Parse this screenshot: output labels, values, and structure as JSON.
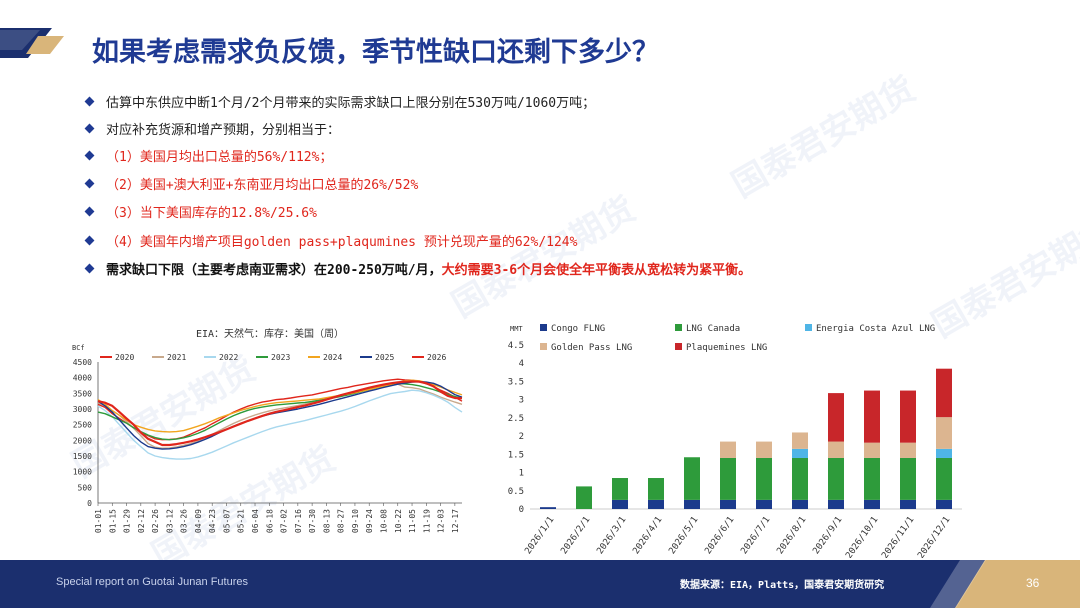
{
  "title": "如果考虑需求负反馈，季节性缺口还剩下多少？",
  "bullets": [
    {
      "text": "估算中东供应中断1个月/2个月带来的实际需求缺口上限分别在530万吨/1060万吨；",
      "style": "black"
    },
    {
      "text": "对应补充货源和增产预期，分别相当于：",
      "style": "black"
    },
    {
      "text": "（1）美国月均出口总量的56%/112%；",
      "style": "red"
    },
    {
      "text": "（2）美国+澳大利亚+东南亚月均出口总量的26%/52%",
      "style": "red"
    },
    {
      "text": "（3）当下美国库存的12.8%/25.6%",
      "style": "red"
    },
    {
      "text": "（4）美国年内增产项目golden pass+plaqumines 预计兑现产量的62%/124%",
      "style": "red"
    }
  ],
  "bullet_strong": {
    "prefix": "需求缺口下限（主要考虑南亚需求）在200-250万吨/月，",
    "emphasis": "大约需要3-6个月会使全年平衡表从宽松转为紧平衡。"
  },
  "watermark_text": "国泰君安期货",
  "footer": {
    "left": "Special report on Guotai Junan Futures",
    "source": "数据来源：EIA，Platts，国泰君安期货研究",
    "page": "36"
  },
  "colors": {
    "title": "#1f3a93",
    "red": "#e0261c",
    "navy": "#1b2f6e",
    "gold": "#d9b57a"
  },
  "chart_data": [
    {
      "type": "line",
      "title": "EIA：天然气：库存：美国（周）",
      "ylabel": "BCf",
      "ylim": [
        0,
        4500
      ],
      "yticks": [
        0,
        500,
        1000,
        1500,
        2000,
        2500,
        3000,
        3500,
        4000,
        4500
      ],
      "x_ticks": [
        "01-01",
        "01-08",
        "01-15",
        "01-22",
        "01-29",
        "02-05",
        "02-12",
        "02-19",
        "02-26",
        "03-05",
        "03-12",
        "03-19",
        "03-26",
        "04-02",
        "04-09",
        "04-16",
        "04-23",
        "04-30",
        "05-07",
        "05-14",
        "05-21",
        "05-28",
        "06-04",
        "06-11",
        "06-18",
        "06-25",
        "07-02",
        "07-09",
        "07-16",
        "07-23",
        "07-30",
        "08-06",
        "08-13",
        "08-20",
        "08-27",
        "09-03",
        "09-10",
        "09-17",
        "09-24",
        "10-01",
        "10-08",
        "10-15",
        "10-22",
        "10-29",
        "11-05",
        "11-12",
        "11-19",
        "11-26",
        "12-03",
        "12-10",
        "12-17",
        "12-24"
      ],
      "x_tick_labels_shown": [
        "01-01",
        "01-15",
        "01-29",
        "02-12",
        "02-26",
        "03-12",
        "03-26",
        "04-09",
        "04-23",
        "05-07",
        "05-21",
        "06-04",
        "06-18",
        "07-02",
        "07-16",
        "07-30",
        "08-13",
        "08-27",
        "09-10",
        "09-24",
        "10-08",
        "10-22",
        "11-05",
        "11-19",
        "12-03",
        "12-17"
      ],
      "series": [
        {
          "name": "2020",
          "color": "#e0261c",
          "values": [
            3150,
            3050,
            2850,
            2700,
            2550,
            2400,
            2250,
            2150,
            2050,
            2020,
            2030,
            2050,
            2100,
            2200,
            2300,
            2400,
            2530,
            2650,
            2780,
            2900,
            3000,
            3090,
            3160,
            3220,
            3260,
            3300,
            3320,
            3350,
            3390,
            3420,
            3450,
            3500,
            3550,
            3600,
            3650,
            3690,
            3740,
            3780,
            3820,
            3860,
            3900,
            3930,
            3950,
            3930,
            3920,
            3880,
            3800,
            3720,
            3600,
            3500,
            3380,
            3250
          ]
        },
        {
          "name": "2021",
          "color": "#c8a98c",
          "values": [
            3200,
            3100,
            2950,
            2800,
            2600,
            2380,
            2150,
            1900,
            1780,
            1750,
            1760,
            1790,
            1840,
            1900,
            1980,
            2080,
            2190,
            2310,
            2430,
            2540,
            2640,
            2730,
            2810,
            2880,
            2940,
            2990,
            3030,
            3070,
            3110,
            3160,
            3200,
            3250,
            3300,
            3350,
            3400,
            3460,
            3520,
            3580,
            3630,
            3680,
            3720,
            3760,
            3790,
            3700,
            3680,
            3640,
            3560,
            3480,
            3380,
            3300,
            3220,
            3150
          ]
        },
        {
          "name": "2022",
          "color": "#a8d8ee",
          "values": [
            3100,
            2950,
            2750,
            2500,
            2250,
            2000,
            1800,
            1600,
            1500,
            1450,
            1420,
            1400,
            1400,
            1420,
            1470,
            1540,
            1620,
            1720,
            1820,
            1920,
            2010,
            2100,
            2190,
            2280,
            2360,
            2430,
            2480,
            2530,
            2580,
            2630,
            2690,
            2750,
            2810,
            2870,
            2930,
            3000,
            3080,
            3170,
            3260,
            3340,
            3420,
            3490,
            3530,
            3560,
            3600,
            3580,
            3520,
            3440,
            3340,
            3220,
            3050,
            2900
          ]
        },
        {
          "name": "2023",
          "color": "#2e9b3b",
          "values": [
            2900,
            2850,
            2750,
            2650,
            2550,
            2400,
            2280,
            2170,
            2090,
            2040,
            2020,
            2040,
            2080,
            2140,
            2220,
            2320,
            2440,
            2560,
            2680,
            2790,
            2880,
            2960,
            3020,
            3060,
            3100,
            3130,
            3150,
            3170,
            3190,
            3210,
            3240,
            3280,
            3320,
            3360,
            3400,
            3450,
            3500,
            3560,
            3620,
            3680,
            3730,
            3780,
            3810,
            3800,
            3780,
            3740,
            3680,
            3620,
            3540,
            3470,
            3400,
            3350
          ]
        },
        {
          "name": "2024",
          "color": "#f2a51f",
          "values": [
            3300,
            3150,
            2950,
            2800,
            2650,
            2500,
            2420,
            2350,
            2300,
            2280,
            2270,
            2280,
            2310,
            2380,
            2450,
            2530,
            2620,
            2720,
            2800,
            2880,
            2960,
            3020,
            3080,
            3130,
            3170,
            3200,
            3220,
            3240,
            3260,
            3280,
            3300,
            3320,
            3360,
            3400,
            3440,
            3480,
            3520,
            3570,
            3620,
            3680,
            3730,
            3780,
            3850,
            3900,
            3920,
            3900,
            3850,
            3780,
            3700,
            3610,
            3530,
            3450
          ]
        },
        {
          "name": "2025",
          "color": "#1b3a8c",
          "values": [
            3250,
            3100,
            2900,
            2650,
            2400,
            2150,
            1950,
            1800,
            1750,
            1720,
            1730,
            1760,
            1800,
            1860,
            1940,
            2030,
            2130,
            2240,
            2350,
            2450,
            2540,
            2620,
            2700,
            2770,
            2830,
            2880,
            2920,
            2960,
            3000,
            3050,
            3100,
            3150,
            3210,
            3270,
            3330,
            3390,
            3450,
            3510,
            3570,
            3630,
            3690,
            3740,
            3790,
            3830,
            3860,
            3870,
            3860,
            3820,
            3730,
            3600,
            3460,
            3380
          ]
        },
        {
          "name": "2026",
          "color": "#e0261c",
          "values": [
            3250,
            3200,
            3100,
            2900,
            2700,
            2500,
            2250,
            2050,
            1950,
            1850,
            1850,
            1880,
            1920,
            1970,
            2030,
            2100,
            2180,
            2260,
            2350,
            2440,
            2530,
            2620,
            2700,
            2780,
            2850,
            2910,
            2960,
            3010,
            3060,
            3110,
            3170,
            3230,
            3300,
            3370,
            3440,
            3500,
            3560,
            3620,
            3680,
            3730,
            3780,
            3820,
            3850,
            3870,
            3880,
            3870,
            3820,
            3720,
            3560,
            3420,
            3350,
            3340
          ]
        }
      ]
    },
    {
      "type": "bar",
      "stacked": true,
      "ylabel": "MMT",
      "ylim": [
        0,
        4.5
      ],
      "yticks": [
        "0",
        "0.5",
        "1",
        "1.5",
        "2",
        "2.5",
        "3",
        "3.5",
        "4",
        "4.5"
      ],
      "categories": [
        "2026/1/1",
        "2026/2/1",
        "2026/3/1",
        "2026/4/1",
        "2026/5/1",
        "2026/6/1",
        "2026/7/1",
        "2026/8/1",
        "2026/9/1",
        "2026/10/1",
        "2026/11/1",
        "2026/12/1"
      ],
      "series": [
        {
          "name": "Congo FLNG",
          "color": "#1b3a8c",
          "values": [
            0.05,
            0,
            0.25,
            0.25,
            0.25,
            0.25,
            0.25,
            0.25,
            0.25,
            0.25,
            0.25,
            0.25
          ]
        },
        {
          "name": "LNG Canada",
          "color": "#2e9b3b",
          "values": [
            0,
            0.62,
            0.6,
            0.6,
            1.17,
            1.15,
            1.15,
            1.15,
            1.15,
            1.15,
            1.15,
            1.15
          ]
        },
        {
          "name": "Energia Costa Azul LNG",
          "color": "#4fb5e6",
          "values": [
            0,
            0,
            0,
            0,
            0,
            0,
            0,
            0.25,
            0,
            0,
            0,
            0.25
          ]
        },
        {
          "name": "Golden Pass LNG",
          "color": "#dcb590",
          "values": [
            0,
            0,
            0,
            0,
            0,
            0.45,
            0.45,
            0.45,
            0.45,
            0.42,
            0.42,
            0.87
          ]
        },
        {
          "name": "Plaquemines LNG",
          "color": "#c8262a",
          "values": [
            0,
            0,
            0,
            0,
            0,
            0,
            0,
            0,
            1.33,
            1.43,
            1.43,
            1.33
          ]
        }
      ]
    }
  ]
}
